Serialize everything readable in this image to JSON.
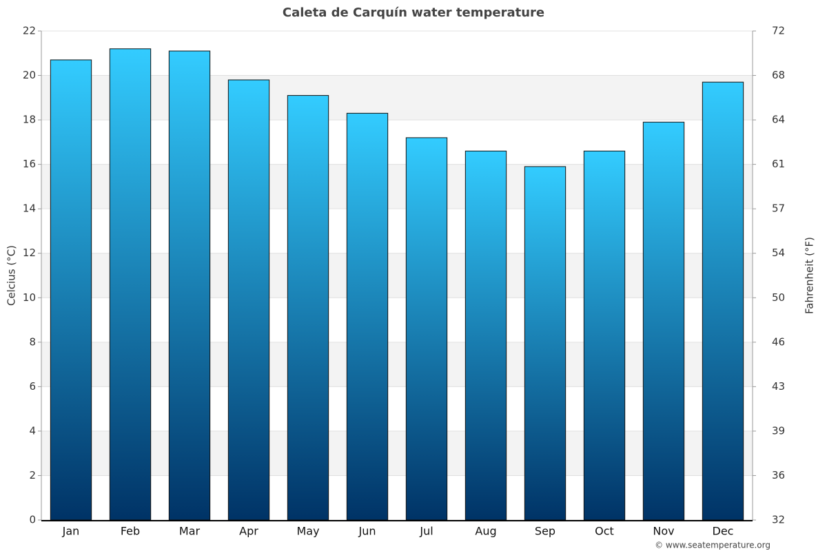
{
  "chart_data": {
    "type": "bar",
    "title": "Caleta de Carquín water temperature",
    "y_label": "Celcius (°C)",
    "y2_label": "Fahrenheit (°F)",
    "credit": "© www.seatemperature.org",
    "categories": [
      "Jan",
      "Feb",
      "Mar",
      "Apr",
      "May",
      "Jun",
      "Jul",
      "Aug",
      "Sep",
      "Oct",
      "Nov",
      "Dec"
    ],
    "values": [
      20.7,
      21.2,
      21.1,
      19.8,
      19.1,
      18.3,
      17.2,
      16.6,
      15.9,
      16.6,
      17.9,
      19.7
    ],
    "color_top": "#33ccff",
    "color_bottom": "#003366",
    "ylim": [
      0,
      22
    ],
    "yticks": [
      0,
      2,
      4,
      6,
      8,
      10,
      12,
      14,
      16,
      18,
      20,
      22
    ],
    "y2lim": [
      32,
      71.6
    ],
    "y2ticks": [
      32,
      {
        "value": 35.6,
        "label": "36"
      },
      {
        "value": 39.2,
        "label": "39"
      },
      {
        "value": 42.8,
        "label": "43"
      },
      {
        "value": 46.4,
        "label": "46"
      },
      50,
      {
        "value": 53.6,
        "label": "54"
      },
      {
        "value": 57.2,
        "label": "57"
      },
      {
        "value": 60.8,
        "label": "61"
      },
      {
        "value": 64.4,
        "label": "64"
      },
      68,
      {
        "value": 71.6,
        "label": "72"
      }
    ],
    "grid": true
  }
}
